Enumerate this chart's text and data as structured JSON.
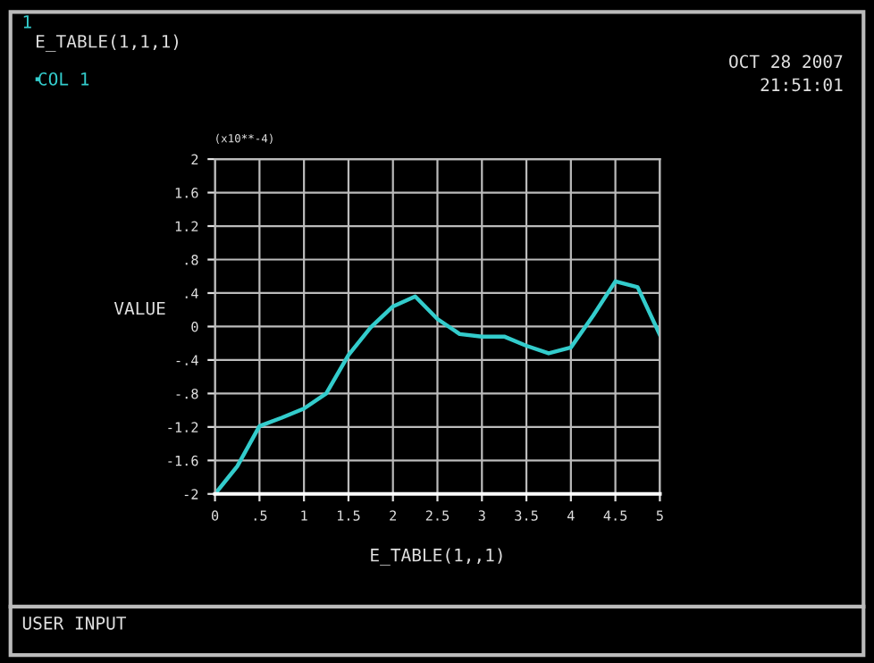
{
  "chart_data": {
    "type": "line",
    "title": "E_TABLE(1,1,1)",
    "xlabel": "E_TABLE(1,,1)",
    "ylabel": "VALUE",
    "annotations": [
      "1",
      "OCT 28 2007",
      "21:51:01",
      "(x10**-4)",
      "USER INPUT"
    ],
    "x": [
      0,
      0.25,
      0.5,
      0.75,
      1,
      1.25,
      1.5,
      1.75,
      2,
      2.25,
      2.5,
      2.75,
      3,
      3.25,
      3.5,
      3.75,
      4,
      4.25,
      4.5,
      4.75,
      5
    ],
    "series": [
      {
        "name": "COL 1",
        "color": "#33cccc",
        "values": [
          -2,
          -1.67,
          -1.19,
          -1.09,
          -0.98,
          -0.8,
          -0.34,
          -0.01,
          0.24,
          0.36,
          0.09,
          -0.09,
          -0.12,
          -0.12,
          -0.23,
          -0.32,
          -0.25,
          0.13,
          0.54,
          0.47,
          -0.1
        ]
      }
    ],
    "xlim": [
      0,
      5
    ],
    "ylim": [
      -2,
      2
    ],
    "xticks": [
      0,
      {
        "value": 0.5,
        "label": ".5"
      },
      1,
      1.5,
      2,
      2.5,
      3,
      3.5,
      4,
      4.5,
      5
    ],
    "yticks": [
      -2,
      -1.6,
      -1.2,
      {
        "value": -0.8,
        "label": "-.8"
      },
      {
        "value": -0.4,
        "label": "-.4"
      },
      0,
      {
        "value": 0.4,
        "label": ".4"
      },
      {
        "value": 0.8,
        "label": ".8"
      },
      1.2,
      1.6,
      2
    ],
    "grid": true,
    "legend": "top left",
    "marker": "none",
    "line_style": "solid"
  }
}
